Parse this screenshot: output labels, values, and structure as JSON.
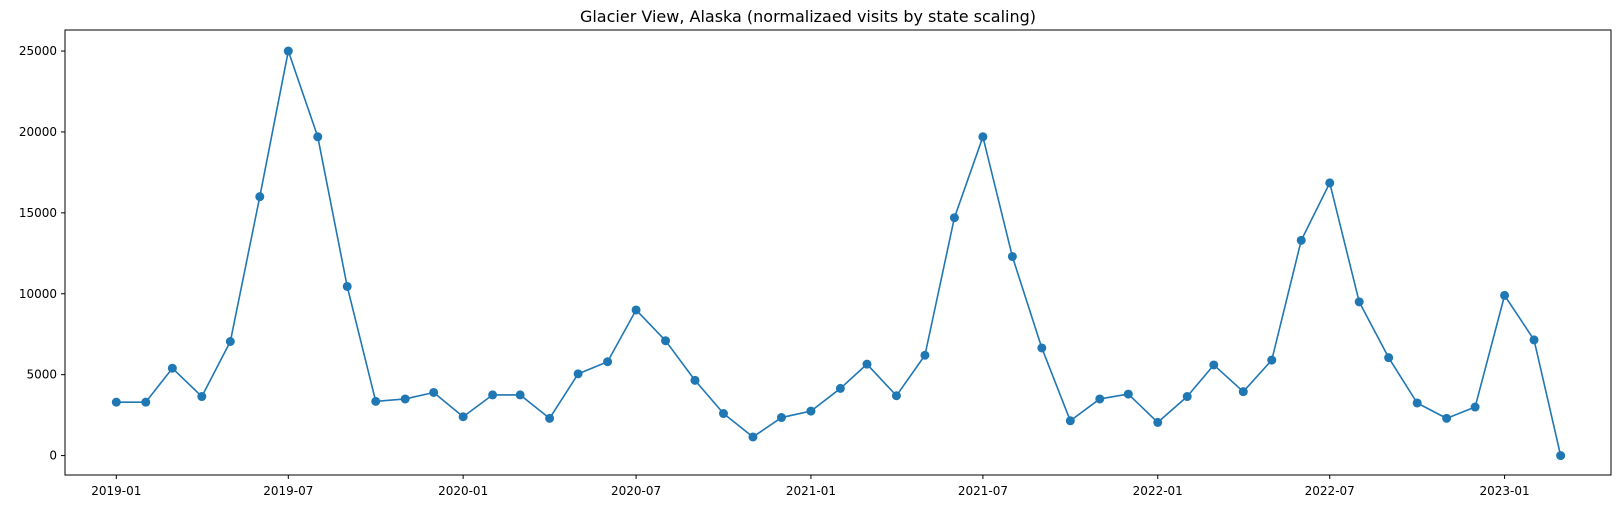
{
  "chart_data": {
    "type": "line",
    "title": "Glacier View, Alaska (normalizaed visits by state scaling)",
    "xlabel": "",
    "ylabel": "",
    "x_ticks": [
      "2019-01",
      "2019-07",
      "2020-01",
      "2020-07",
      "2021-01",
      "2021-07",
      "2022-01",
      "2022-07",
      "2023-01"
    ],
    "y_ticks": [
      "0",
      "5000",
      "10000",
      "15000",
      "20000",
      "25000"
    ],
    "ylim": [
      -1200,
      26300
    ],
    "xlim": [
      "2018-11-08",
      "2023-04-23"
    ],
    "grid": false,
    "color": "#1f77b4",
    "marker": "circle",
    "series": [
      {
        "x": [
          "2019-01",
          "2019-02",
          "2019-03",
          "2019-04",
          "2019-05",
          "2019-06",
          "2019-07",
          "2019-08",
          "2019-09",
          "2019-10",
          "2019-11",
          "2019-12",
          "2020-01",
          "2020-02",
          "2020-03",
          "2020-04",
          "2020-05",
          "2020-06",
          "2020-07",
          "2020-08",
          "2020-09",
          "2020-10",
          "2020-11",
          "2020-12",
          "2021-01",
          "2021-02",
          "2021-03",
          "2021-04",
          "2021-05",
          "2021-06",
          "2021-07",
          "2021-08",
          "2021-09",
          "2021-10",
          "2021-11",
          "2021-12",
          "2022-01",
          "2022-02",
          "2022-03",
          "2022-04",
          "2022-05",
          "2022-06",
          "2022-07",
          "2022-08",
          "2022-09",
          "2022-10",
          "2022-11",
          "2022-12",
          "2023-01",
          "2023-02",
          "2023-03"
        ],
        "values": [
          3300,
          3300,
          5400,
          3650,
          7050,
          16000,
          25000,
          19700,
          10450,
          3350,
          3500,
          3900,
          2400,
          3750,
          3750,
          2300,
          5050,
          5800,
          9000,
          7100,
          4650,
          2600,
          1150,
          2350,
          2750,
          4150,
          5650,
          3700,
          6200,
          14700,
          19700,
          12300,
          6650,
          2150,
          3500,
          3800,
          2050,
          3650,
          5600,
          3950,
          5900,
          13300,
          16850,
          9500,
          6050,
          3250,
          2300,
          3000,
          9900,
          7150,
          0
        ]
      }
    ]
  }
}
